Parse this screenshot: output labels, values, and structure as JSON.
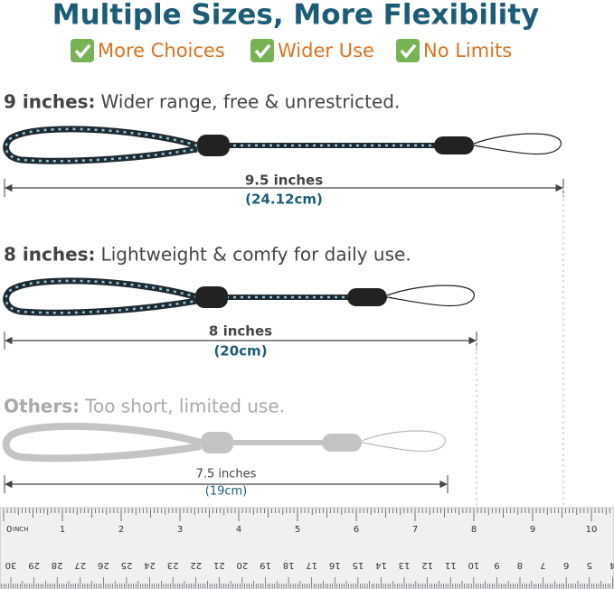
{
  "header": {
    "title": "Multiple Sizes, More Flexibility",
    "badges": [
      "More Choices",
      "Wider Use",
      "No Limits"
    ]
  },
  "sections": [
    {
      "label": "9 inches:",
      "description": "Wider range, free & unrestricted.",
      "length": "9.5 inches",
      "metric": "(24.12cm)"
    },
    {
      "label": "8 inches:",
      "description": "Lightweight & comfy for daily use.",
      "length": "8 inches",
      "metric": "(20cm)"
    },
    {
      "label": "Others:",
      "description": "Too short, limited use.",
      "length": "7.5 inches",
      "metric": "(19cm)"
    }
  ],
  "ruler": {
    "unit": "INCH",
    "inches": [
      "0",
      "1",
      "2",
      "3",
      "4",
      "5",
      "6",
      "7",
      "8",
      "9",
      "10"
    ],
    "centimeters": [
      "30",
      "29",
      "28",
      "27",
      "26",
      "25",
      "24",
      "23",
      "22",
      "21",
      "20",
      "19",
      "18",
      "17",
      "16",
      "15",
      "14",
      "13",
      "12",
      "11",
      "10",
      "9",
      "8",
      "7",
      "6",
      "5",
      "4"
    ]
  }
}
